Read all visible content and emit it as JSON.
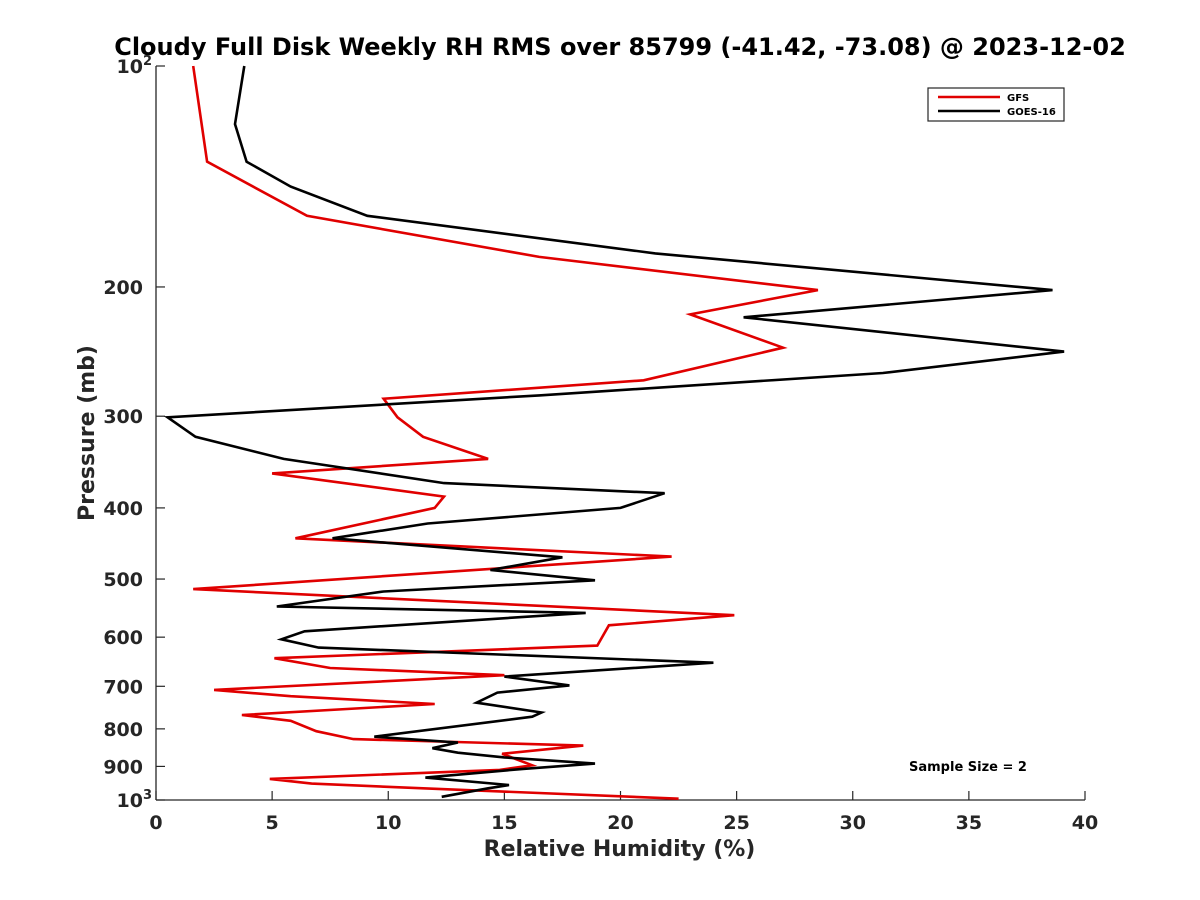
{
  "chart_data": {
    "type": "line",
    "title": "Cloudy Full Disk Weekly RH RMS over 85799 (-41.42, -73.08) @ 2023-12-02",
    "xlabel": "Relative Humidity (%)",
    "ylabel": "Pressure (mb)",
    "xlim": [
      0,
      40
    ],
    "ylim": [
      100,
      1000
    ],
    "yscale": "log",
    "yreversed": true,
    "xticks": [
      0,
      5,
      10,
      15,
      20,
      25,
      30,
      35,
      40
    ],
    "xtick_labels": [
      "0",
      "5",
      "10",
      "15",
      "20",
      "25",
      "30",
      "35",
      "40"
    ],
    "yticks": [
      {
        "value": 100,
        "label": "10",
        "exp": "2"
      },
      {
        "value": 200,
        "label": "200",
        "exp": ""
      },
      {
        "value": 300,
        "label": "300",
        "exp": ""
      },
      {
        "value": 400,
        "label": "400",
        "exp": ""
      },
      {
        "value": 500,
        "label": "500",
        "exp": ""
      },
      {
        "value": 600,
        "label": "600",
        "exp": ""
      },
      {
        "value": 700,
        "label": "700",
        "exp": ""
      },
      {
        "value": 800,
        "label": "800",
        "exp": ""
      },
      {
        "value": 900,
        "label": "900",
        "exp": ""
      },
      {
        "value": 1000,
        "label": "10",
        "exp": "3"
      }
    ],
    "legend_position": "top-right",
    "annotation": "Sample Size = 2",
    "series": [
      {
        "name": "GFS",
        "color": "#e00000",
        "points": [
          [
            1.6,
            100
          ],
          [
            2.2,
            135
          ],
          [
            6.5,
            160
          ],
          [
            16.5,
            182
          ],
          [
            28.5,
            202
          ],
          [
            23.0,
            218
          ],
          [
            27.0,
            242
          ],
          [
            21.0,
            268
          ],
          [
            9.8,
            284
          ],
          [
            10.4,
            301
          ],
          [
            11.5,
            320
          ],
          [
            14.3,
            343
          ],
          [
            5.0,
            359
          ],
          [
            12.4,
            386
          ],
          [
            12.0,
            400
          ],
          [
            6.0,
            440
          ],
          [
            22.2,
            466
          ],
          [
            1.6,
            516
          ],
          [
            24.9,
            560
          ],
          [
            19.5,
            578
          ],
          [
            19.0,
            616
          ],
          [
            5.1,
            641
          ],
          [
            7.5,
            661
          ],
          [
            15.0,
            676
          ],
          [
            2.5,
            708
          ],
          [
            5.8,
            722
          ],
          [
            12.0,
            740
          ],
          [
            3.7,
            766
          ],
          [
            5.8,
            780
          ],
          [
            6.9,
            806
          ],
          [
            8.5,
            826
          ],
          [
            18.4,
            843
          ],
          [
            14.9,
            865
          ],
          [
            16.2,
            897
          ],
          [
            14.8,
            910
          ],
          [
            4.9,
            936
          ],
          [
            6.7,
            950
          ],
          [
            11.5,
            964
          ],
          [
            22.5,
            996
          ]
        ]
      },
      {
        "name": "GOES-16",
        "color": "#000000",
        "points": [
          [
            3.8,
            100
          ],
          [
            3.4,
            120
          ],
          [
            3.9,
            135
          ],
          [
            5.8,
            146
          ],
          [
            9.1,
            160
          ],
          [
            21.5,
            180
          ],
          [
            38.6,
            202
          ],
          [
            25.3,
            220
          ],
          [
            39.1,
            245
          ],
          [
            31.3,
            262
          ],
          [
            16.5,
            281
          ],
          [
            0.5,
            301
          ],
          [
            1.7,
            320
          ],
          [
            5.5,
            343
          ],
          [
            12.4,
            370
          ],
          [
            21.9,
            382
          ],
          [
            20.0,
            400
          ],
          [
            11.7,
            420
          ],
          [
            7.6,
            440
          ],
          [
            17.5,
            467
          ],
          [
            14.4,
            486
          ],
          [
            18.9,
            502
          ],
          [
            9.8,
            520
          ],
          [
            5.2,
            545
          ],
          [
            18.5,
            556
          ],
          [
            6.4,
            589
          ],
          [
            5.4,
            604
          ],
          [
            7.0,
            620
          ],
          [
            24.0,
            650
          ],
          [
            15.0,
            679
          ],
          [
            17.8,
            698
          ],
          [
            14.7,
            714
          ],
          [
            13.8,
            737
          ],
          [
            16.6,
            760
          ],
          [
            16.2,
            770
          ],
          [
            9.4,
            820
          ],
          [
            13.0,
            835
          ],
          [
            11.9,
            850
          ],
          [
            13.0,
            862
          ],
          [
            15.0,
            875
          ],
          [
            18.9,
            892
          ],
          [
            15.8,
            907
          ],
          [
            11.6,
            932
          ],
          [
            15.2,
            954
          ],
          [
            14.3,
            964
          ],
          [
            12.3,
            990
          ]
        ]
      }
    ]
  }
}
